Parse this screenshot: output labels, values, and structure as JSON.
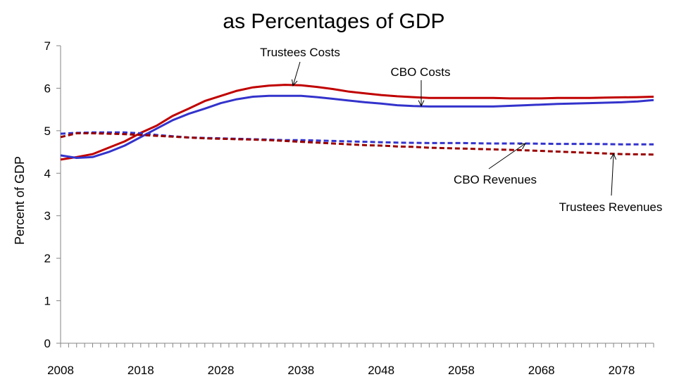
{
  "chart_data": {
    "type": "line",
    "title": "as Percentages of GDP",
    "xlabel": "",
    "ylabel": "Percent of GDP",
    "xlim": [
      2008,
      2082
    ],
    "ylim": [
      0,
      7
    ],
    "x_ticks": [
      2008,
      2018,
      2028,
      2038,
      2048,
      2058,
      2068,
      2078
    ],
    "y_ticks": [
      0,
      1,
      2,
      3,
      4,
      5,
      6,
      7
    ],
    "grid": false,
    "legend": "none",
    "series": [
      {
        "name": "Trustees Costs",
        "color": "#c00000",
        "dash": "solid",
        "points": [
          [
            2008,
            4.32
          ],
          [
            2010,
            4.38
          ],
          [
            2012,
            4.45
          ],
          [
            2014,
            4.6
          ],
          [
            2016,
            4.75
          ],
          [
            2018,
            4.95
          ],
          [
            2020,
            5.12
          ],
          [
            2022,
            5.35
          ],
          [
            2024,
            5.52
          ],
          [
            2026,
            5.7
          ],
          [
            2028,
            5.82
          ],
          [
            2030,
            5.94
          ],
          [
            2032,
            6.02
          ],
          [
            2034,
            6.06
          ],
          [
            2036,
            6.08
          ],
          [
            2038,
            6.07
          ],
          [
            2040,
            6.03
          ],
          [
            2042,
            5.98
          ],
          [
            2044,
            5.92
          ],
          [
            2046,
            5.88
          ],
          [
            2048,
            5.84
          ],
          [
            2050,
            5.81
          ],
          [
            2052,
            5.79
          ],
          [
            2054,
            5.77
          ],
          [
            2058,
            5.77
          ],
          [
            2062,
            5.77
          ],
          [
            2064,
            5.76
          ],
          [
            2068,
            5.76
          ],
          [
            2070,
            5.77
          ],
          [
            2074,
            5.77
          ],
          [
            2076,
            5.78
          ],
          [
            2080,
            5.79
          ],
          [
            2082,
            5.8
          ]
        ]
      },
      {
        "name": "CBO Costs",
        "color": "#3333cc",
        "dash": "solid",
        "points": [
          [
            2008,
            4.42
          ],
          [
            2010,
            4.36
          ],
          [
            2012,
            4.38
          ],
          [
            2014,
            4.5
          ],
          [
            2016,
            4.65
          ],
          [
            2018,
            4.85
          ],
          [
            2020,
            5.05
          ],
          [
            2022,
            5.25
          ],
          [
            2024,
            5.4
          ],
          [
            2026,
            5.52
          ],
          [
            2028,
            5.65
          ],
          [
            2030,
            5.74
          ],
          [
            2032,
            5.8
          ],
          [
            2034,
            5.82
          ],
          [
            2036,
            5.82
          ],
          [
            2038,
            5.82
          ],
          [
            2040,
            5.79
          ],
          [
            2042,
            5.75
          ],
          [
            2044,
            5.71
          ],
          [
            2046,
            5.67
          ],
          [
            2048,
            5.64
          ],
          [
            2050,
            5.6
          ],
          [
            2052,
            5.58
          ],
          [
            2054,
            5.57
          ],
          [
            2058,
            5.57
          ],
          [
            2062,
            5.57
          ],
          [
            2066,
            5.6
          ],
          [
            2070,
            5.63
          ],
          [
            2074,
            5.65
          ],
          [
            2078,
            5.67
          ],
          [
            2080,
            5.69
          ],
          [
            2082,
            5.72
          ]
        ]
      },
      {
        "name": "CBO Revenues",
        "color": "#3333cc",
        "dash": "dashed",
        "points": [
          [
            2008,
            4.93
          ],
          [
            2010,
            4.95
          ],
          [
            2012,
            4.96
          ],
          [
            2014,
            4.96
          ],
          [
            2016,
            4.96
          ],
          [
            2018,
            4.94
          ],
          [
            2020,
            4.9
          ],
          [
            2022,
            4.87
          ],
          [
            2024,
            4.84
          ],
          [
            2026,
            4.83
          ],
          [
            2028,
            4.82
          ],
          [
            2030,
            4.81
          ],
          [
            2032,
            4.8
          ],
          [
            2034,
            4.79
          ],
          [
            2036,
            4.78
          ],
          [
            2038,
            4.78
          ],
          [
            2040,
            4.77
          ],
          [
            2042,
            4.76
          ],
          [
            2044,
            4.75
          ],
          [
            2046,
            4.74
          ],
          [
            2048,
            4.73
          ],
          [
            2050,
            4.72
          ],
          [
            2054,
            4.71
          ],
          [
            2058,
            4.71
          ],
          [
            2062,
            4.7
          ],
          [
            2066,
            4.7
          ],
          [
            2070,
            4.69
          ],
          [
            2074,
            4.69
          ],
          [
            2078,
            4.68
          ],
          [
            2082,
            4.68
          ]
        ]
      },
      {
        "name": "Trustees Revenues",
        "color": "#990000",
        "dash": "dashed",
        "points": [
          [
            2008,
            4.85
          ],
          [
            2010,
            4.94
          ],
          [
            2012,
            4.94
          ],
          [
            2014,
            4.93
          ],
          [
            2016,
            4.92
          ],
          [
            2018,
            4.9
          ],
          [
            2020,
            4.88
          ],
          [
            2022,
            4.86
          ],
          [
            2024,
            4.84
          ],
          [
            2026,
            4.82
          ],
          [
            2028,
            4.81
          ],
          [
            2030,
            4.8
          ],
          [
            2032,
            4.79
          ],
          [
            2034,
            4.78
          ],
          [
            2036,
            4.76
          ],
          [
            2038,
            4.74
          ],
          [
            2040,
            4.72
          ],
          [
            2042,
            4.7
          ],
          [
            2044,
            4.68
          ],
          [
            2046,
            4.66
          ],
          [
            2048,
            4.65
          ],
          [
            2050,
            4.63
          ],
          [
            2052,
            4.62
          ],
          [
            2054,
            4.6
          ],
          [
            2058,
            4.58
          ],
          [
            2062,
            4.56
          ],
          [
            2066,
            4.54
          ],
          [
            2070,
            4.51
          ],
          [
            2074,
            4.48
          ],
          [
            2078,
            4.45
          ],
          [
            2082,
            4.44
          ]
        ]
      }
    ],
    "annotations": [
      {
        "text": "Trustees Costs",
        "arrow_to": [
          2037,
          6.06
        ]
      },
      {
        "text": "CBO Costs",
        "arrow_to": [
          2053,
          5.58
        ]
      },
      {
        "text": "CBO Revenues",
        "arrow_to": [
          2066,
          4.7
        ]
      },
      {
        "text": "Trustees Revenues",
        "arrow_to": [
          2077,
          4.46
        ]
      }
    ]
  }
}
